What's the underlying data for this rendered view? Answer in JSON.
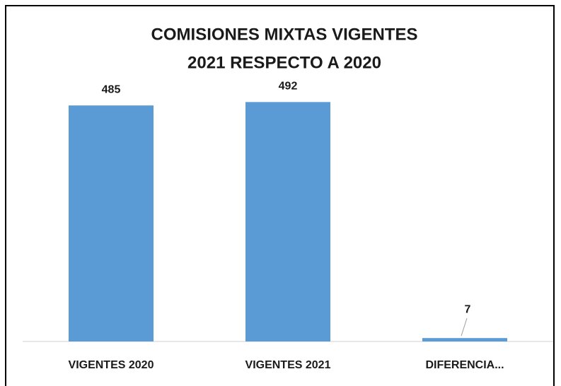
{
  "chart_data": {
    "type": "bar",
    "title": [
      "COMISIONES MIXTAS VIGENTES",
      "2021 RESPECTO A 2020"
    ],
    "categories": [
      "VIGENTES 2020",
      "VIGENTES 2021",
      "DIFERENCIA..."
    ],
    "values": [
      485,
      492,
      7
    ],
    "color": "#5b9bd5",
    "ylim": [
      0,
      600
    ]
  }
}
